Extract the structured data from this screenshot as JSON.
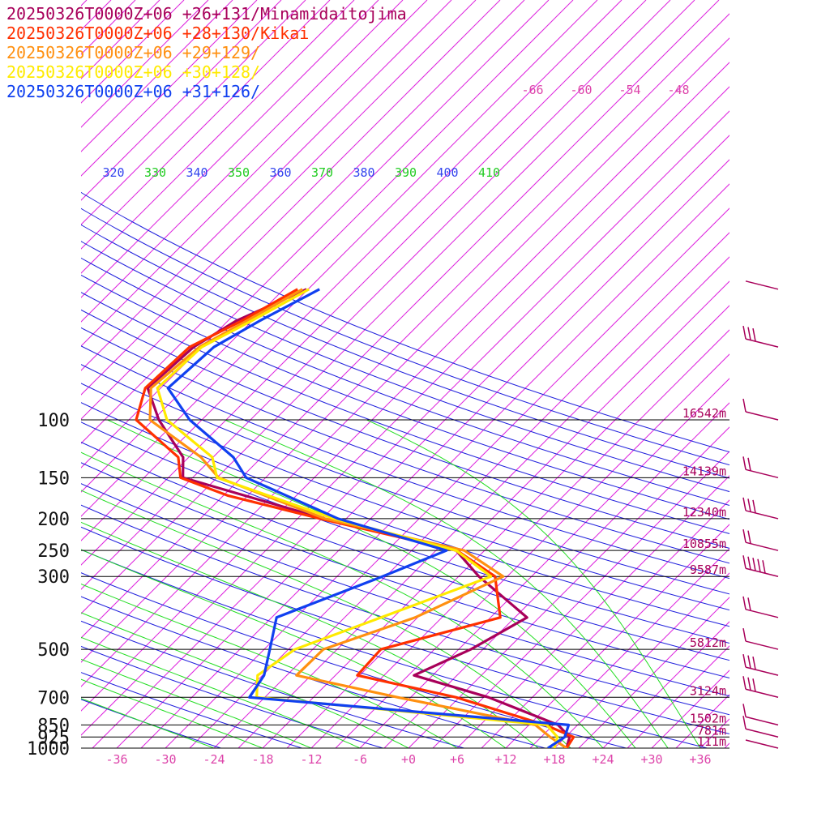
{
  "chart_data": {
    "type": "line",
    "subtype": "skew-t log-p sounding",
    "title": "",
    "legend_position": "top-left",
    "series": [
      {
        "name": "20250326T0000Z+06 +26+131/Minamidaitojima",
        "color": "#a8005a",
        "points": [
          [
            1000,
            19.5
          ],
          [
            925,
            18.5
          ],
          [
            850,
            15.6
          ],
          [
            700,
            3.6
          ],
          [
            600,
            -8.3
          ],
          [
            500,
            -4.5
          ],
          [
            400,
            -1.5
          ],
          [
            300,
            -12.5
          ],
          [
            250,
            -18.5
          ],
          [
            200,
            -38.7
          ],
          [
            150,
            -61.2
          ],
          [
            130,
            -63.7
          ],
          [
            100,
            -71.3
          ],
          [
            80,
            -76.6
          ],
          [
            60,
            -76.0
          ],
          [
            50,
            -74.0
          ],
          [
            40,
            -69.2
          ]
        ]
      },
      {
        "name": "20250326T0000Z+06 +28+130/Kikai",
        "color": "#ff3000",
        "points": [
          [
            1000,
            19.5
          ],
          [
            925,
            19.0
          ],
          [
            850,
            14.0
          ],
          [
            700,
            -0.4
          ],
          [
            600,
            -15.3
          ],
          [
            500,
            -15.6
          ],
          [
            400,
            -4.8
          ],
          [
            300,
            -10.5
          ],
          [
            250,
            -18.4
          ],
          [
            200,
            -39.2
          ],
          [
            170,
            -53.5
          ],
          [
            150,
            -61.5
          ],
          [
            130,
            -64.3
          ],
          [
            100,
            -74.1
          ],
          [
            80,
            -76.9
          ],
          [
            60,
            -76.5
          ],
          [
            50,
            -73.3
          ],
          [
            40,
            -70.3
          ]
        ]
      },
      {
        "name": "20250326T0000Z+06 +29+129/",
        "color": "#ff9010",
        "points": [
          [
            1000,
            19.5
          ],
          [
            925,
            16.1
          ],
          [
            850,
            12.8
          ],
          [
            700,
            -7.6
          ],
          [
            600,
            -22.8
          ],
          [
            500,
            -22.7
          ],
          [
            400,
            -15.3
          ],
          [
            300,
            -9.5
          ],
          [
            250,
            -17.5
          ],
          [
            200,
            -38.6
          ],
          [
            150,
            -56.8
          ],
          [
            130,
            -61.5
          ],
          [
            100,
            -72.4
          ],
          [
            80,
            -76.2
          ],
          [
            60,
            -75.3
          ],
          [
            50,
            -72.7
          ],
          [
            40,
            -69.7
          ]
        ]
      },
      {
        "name": "20250326T0000Z+06 +30+128/",
        "color": "#ffea00",
        "points": [
          [
            1000,
            18.0
          ],
          [
            925,
            17.0
          ],
          [
            850,
            14.2
          ],
          [
            700,
            -25.0
          ],
          [
            600,
            -27.6
          ],
          [
            500,
            -26.2
          ],
          [
            400,
            -19.5
          ],
          [
            300,
            -11.0
          ],
          [
            250,
            -18.5
          ],
          [
            200,
            -37.5
          ],
          [
            150,
            -57.0
          ],
          [
            130,
            -60.1
          ],
          [
            100,
            -70.3
          ],
          [
            80,
            -75.4
          ],
          [
            60,
            -75.0
          ],
          [
            50,
            -72.1
          ],
          [
            40,
            -68.9
          ]
        ]
      },
      {
        "name": "20250326T0000Z+06 +31+126/",
        "color": "#1040f0",
        "points": [
          [
            1000,
            17.2
          ],
          [
            925,
            17.9
          ],
          [
            850,
            16.9
          ],
          [
            700,
            -25.9
          ],
          [
            600,
            -26.8
          ],
          [
            500,
            -29.3
          ],
          [
            400,
            -32.4
          ],
          [
            300,
            -24.4
          ],
          [
            250,
            -19.7
          ],
          [
            200,
            -37.0
          ],
          [
            150,
            -53.4
          ],
          [
            130,
            -57.5
          ],
          [
            100,
            -67.5
          ],
          [
            80,
            -74.1
          ],
          [
            60,
            -73.5
          ],
          [
            50,
            -71.1
          ],
          [
            40,
            -67.6
          ]
        ]
      }
    ],
    "x_axis": {
      "label": "",
      "unit": "°C",
      "range": [
        -40,
        40
      ],
      "skew_deg": 45,
      "tick_labels": [
        "-36",
        "-30",
        "-24",
        "-18",
        "-12",
        "-6",
        "+0",
        "+6",
        "+12",
        "+18",
        "+24",
        "+30",
        "+36"
      ]
    },
    "y_axis": {
      "label": "",
      "unit": "hPa",
      "scale": "log",
      "range": [
        1000,
        100
      ],
      "tick_labels": [
        "100",
        "150",
        "200",
        "250",
        "300",
        "500",
        "700",
        "850",
        "925",
        "1000"
      ]
    },
    "isotherm_labels": [
      "-66",
      "-60",
      "-54",
      "-48"
    ],
    "theta_labels": [
      "320",
      "330",
      "340",
      "350",
      "360",
      "370",
      "380",
      "390",
      "400",
      "410"
    ],
    "heights": [
      {
        "p": 100,
        "label": "16542m"
      },
      {
        "p": 150,
        "label": "14139m"
      },
      {
        "p": 200,
        "label": "12340m"
      },
      {
        "p": 250,
        "label": "10855m"
      },
      {
        "p": 300,
        "label": "9587m"
      },
      {
        "p": 500,
        "label": "5812m"
      },
      {
        "p": 700,
        "label": "3124m"
      },
      {
        "p": 850,
        "label": "1502m"
      },
      {
        "p": 925,
        "label": "781m"
      },
      {
        "p": 1000,
        "label": "111m"
      }
    ],
    "wind_barbs": [
      {
        "p": 1000,
        "barbs": 0,
        "pennant": false
      },
      {
        "p": 925,
        "barbs": 1,
        "pennant": false
      },
      {
        "p": 850,
        "barbs": 1,
        "pennant": false
      },
      {
        "p": 700,
        "barbs": 3,
        "pennant": false
      },
      {
        "p": 600,
        "barbs": 3,
        "pennant": false
      },
      {
        "p": 500,
        "barbs": 1,
        "pennant": false
      },
      {
        "p": 400,
        "barbs": 2,
        "pennant": false
      },
      {
        "p": 300,
        "barbs": 5,
        "pennant": false
      },
      {
        "p": 250,
        "barbs": 2,
        "pennant": false
      },
      {
        "p": 200,
        "barbs": 3,
        "pennant": false
      },
      {
        "p": 150,
        "barbs": 2,
        "pennant": false
      },
      {
        "p": 100,
        "barbs": 1,
        "pennant": false
      },
      {
        "p": 60,
        "barbs": 3,
        "pennant": false
      },
      {
        "p": 40,
        "barbs": 0,
        "pennant": false
      }
    ],
    "colors": {
      "isobar": "#000000",
      "isotherm": "#dd22dd",
      "dry_adiabat": "#2222dd",
      "moist_adiabat": "#22dd22",
      "label_magenta": "#dd44aa",
      "label_blue": "#3344ee",
      "label_green": "#22cc22",
      "barb": "#a8005a"
    }
  }
}
